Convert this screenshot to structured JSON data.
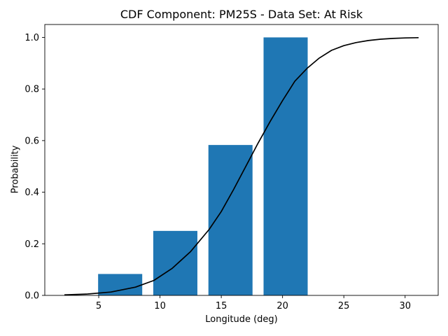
{
  "chart_data": {
    "type": "bar",
    "title": "CDF Component: PM25S - Data Set: At Risk",
    "xlabel": "Longitude (deg)",
    "ylabel": "Probability",
    "xlim": [
      0.6,
      32.7
    ],
    "ylim": [
      0.0,
      1.05
    ],
    "xticks": [
      5,
      10,
      15,
      20,
      25,
      30
    ],
    "yticks": [
      0.0,
      0.2,
      0.4,
      0.6,
      0.8,
      1.0
    ],
    "xtick_labels": [
      "5",
      "10",
      "15",
      "20",
      "25",
      "30"
    ],
    "ytick_labels": [
      "0.0",
      "0.2",
      "0.4",
      "0.6",
      "0.8",
      "1.0"
    ],
    "bar_color": "#1f77b4",
    "bar_width": 3.6,
    "bars": [
      {
        "x": 6.75,
        "value": 0.083
      },
      {
        "x": 11.25,
        "value": 0.25
      },
      {
        "x": 15.75,
        "value": 0.583
      },
      {
        "x": 20.25,
        "value": 1.0
      }
    ],
    "line": {
      "color": "#000000",
      "x": [
        2.2,
        4,
        6,
        8,
        9.5,
        11,
        12.5,
        14,
        15,
        16,
        17,
        18,
        19,
        20,
        21,
        22,
        23,
        24,
        25,
        26,
        27,
        28,
        29,
        30,
        31.1
      ],
      "y": [
        0.002,
        0.005,
        0.013,
        0.032,
        0.058,
        0.105,
        0.17,
        0.255,
        0.325,
        0.41,
        0.5,
        0.59,
        0.675,
        0.755,
        0.83,
        0.88,
        0.92,
        0.95,
        0.968,
        0.98,
        0.988,
        0.993,
        0.996,
        0.998,
        0.999
      ]
    },
    "grid": false
  }
}
